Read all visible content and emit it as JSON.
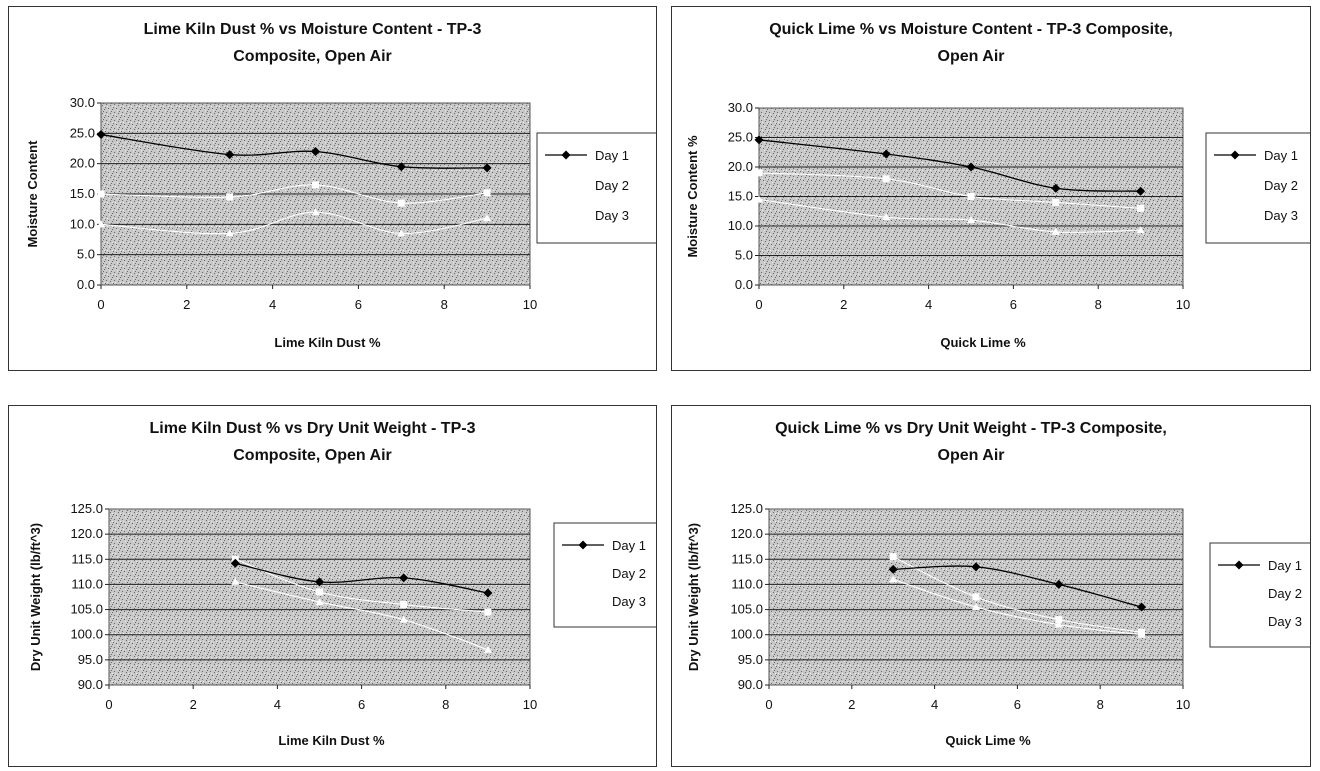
{
  "chart_data": [
    {
      "type": "line",
      "title": [
        "Lime Kiln Dust % vs Moisture Content - TP-3",
        "Composite, Open Air"
      ],
      "xlabel": "Lime Kiln Dust %",
      "ylabel": "Moisture Content",
      "xlim": [
        0,
        10
      ],
      "ylim": [
        0,
        30
      ],
      "xticks": [
        "0",
        "2",
        "4",
        "6",
        "8",
        "10"
      ],
      "yticks": [
        "0.0",
        "5.0",
        "10.0",
        "15.0",
        "20.0",
        "25.0",
        "30.0"
      ],
      "x": [
        0,
        3,
        5,
        7,
        9
      ],
      "series": [
        {
          "name": "Day 1",
          "values": [
            24.8,
            21.5,
            22.0,
            19.5,
            19.3
          ],
          "color": "#000000"
        },
        {
          "name": "Day 2",
          "values": [
            15.0,
            14.5,
            16.5,
            13.5,
            15.2
          ],
          "color": "#ffffff"
        },
        {
          "name": "Day 3",
          "values": [
            10.0,
            8.5,
            12.0,
            8.5,
            11.0
          ],
          "color": "#ffffff"
        }
      ],
      "legend": "right",
      "grid": true
    },
    {
      "type": "line",
      "title": [
        "Quick Lime % vs Moisture Content - TP-3 Composite,",
        "Open Air"
      ],
      "xlabel": "Quick Lime %",
      "ylabel": "Moisture Content %",
      "xlim": [
        0,
        10
      ],
      "ylim": [
        0,
        30
      ],
      "xticks": [
        "0",
        "2",
        "4",
        "6",
        "8",
        "10"
      ],
      "yticks": [
        "0.0",
        "5.0",
        "10.0",
        "15.0",
        "20.0",
        "25.0",
        "30.0"
      ],
      "x": [
        0,
        3,
        5,
        7,
        9
      ],
      "series": [
        {
          "name": "Day 1",
          "values": [
            24.6,
            22.2,
            20.0,
            16.4,
            15.9
          ],
          "color": "#000000"
        },
        {
          "name": "Day 2",
          "values": [
            19.0,
            18.0,
            15.0,
            14.0,
            13.0
          ],
          "color": "#ffffff"
        },
        {
          "name": "Day 3",
          "values": [
            14.5,
            11.5,
            11.0,
            9.0,
            9.3
          ],
          "color": "#ffffff"
        }
      ],
      "legend": "right",
      "grid": true
    },
    {
      "type": "line",
      "title": [
        "Lime Kiln Dust % vs Dry Unit Weight - TP-3",
        "Composite, Open Air"
      ],
      "xlabel": "Lime Kiln Dust %",
      "ylabel": "Dry Unit Weight (lb/ft^3)",
      "xlim": [
        0,
        10
      ],
      "ylim": [
        90,
        125
      ],
      "xticks": [
        "0",
        "2",
        "4",
        "6",
        "8",
        "10"
      ],
      "yticks": [
        "90.0",
        "95.0",
        "100.0",
        "105.0",
        "110.0",
        "115.0",
        "120.0",
        "125.0"
      ],
      "x": [
        3,
        5,
        7,
        9
      ],
      "series": [
        {
          "name": "Day 1",
          "values": [
            114.2,
            110.5,
            111.3,
            108.3
          ],
          "color": "#000000"
        },
        {
          "name": "Day 2",
          "values": [
            115.0,
            108.5,
            106.0,
            104.5
          ],
          "color": "#ffffff"
        },
        {
          "name": "Day 3",
          "values": [
            110.5,
            106.5,
            103.0,
            97.0
          ],
          "color": "#ffffff"
        }
      ],
      "legend": "right",
      "grid": true
    },
    {
      "type": "line",
      "title": [
        "Quick Lime % vs Dry Unit Weight - TP-3 Composite,",
        "Open Air"
      ],
      "xlabel": "Quick Lime %",
      "ylabel": "Dry Unit Weight (lb/ft^3)",
      "xlim": [
        0,
        10
      ],
      "ylim": [
        90,
        125
      ],
      "xticks": [
        "0",
        "2",
        "4",
        "6",
        "8",
        "10"
      ],
      "yticks": [
        "90.0",
        "95.0",
        "100.0",
        "105.0",
        "110.0",
        "115.0",
        "120.0",
        "125.0"
      ],
      "x": [
        3,
        5,
        7,
        9
      ],
      "series": [
        {
          "name": "Day 1",
          "values": [
            113.0,
            113.5,
            110.0,
            105.5
          ],
          "color": "#000000"
        },
        {
          "name": "Day 2",
          "values": [
            115.5,
            107.5,
            103.0,
            100.5
          ],
          "color": "#ffffff"
        },
        {
          "name": "Day 3",
          "values": [
            111.0,
            105.5,
            102.0,
            100.0
          ],
          "color": "#ffffff"
        }
      ],
      "legend": "right",
      "grid": true
    }
  ]
}
